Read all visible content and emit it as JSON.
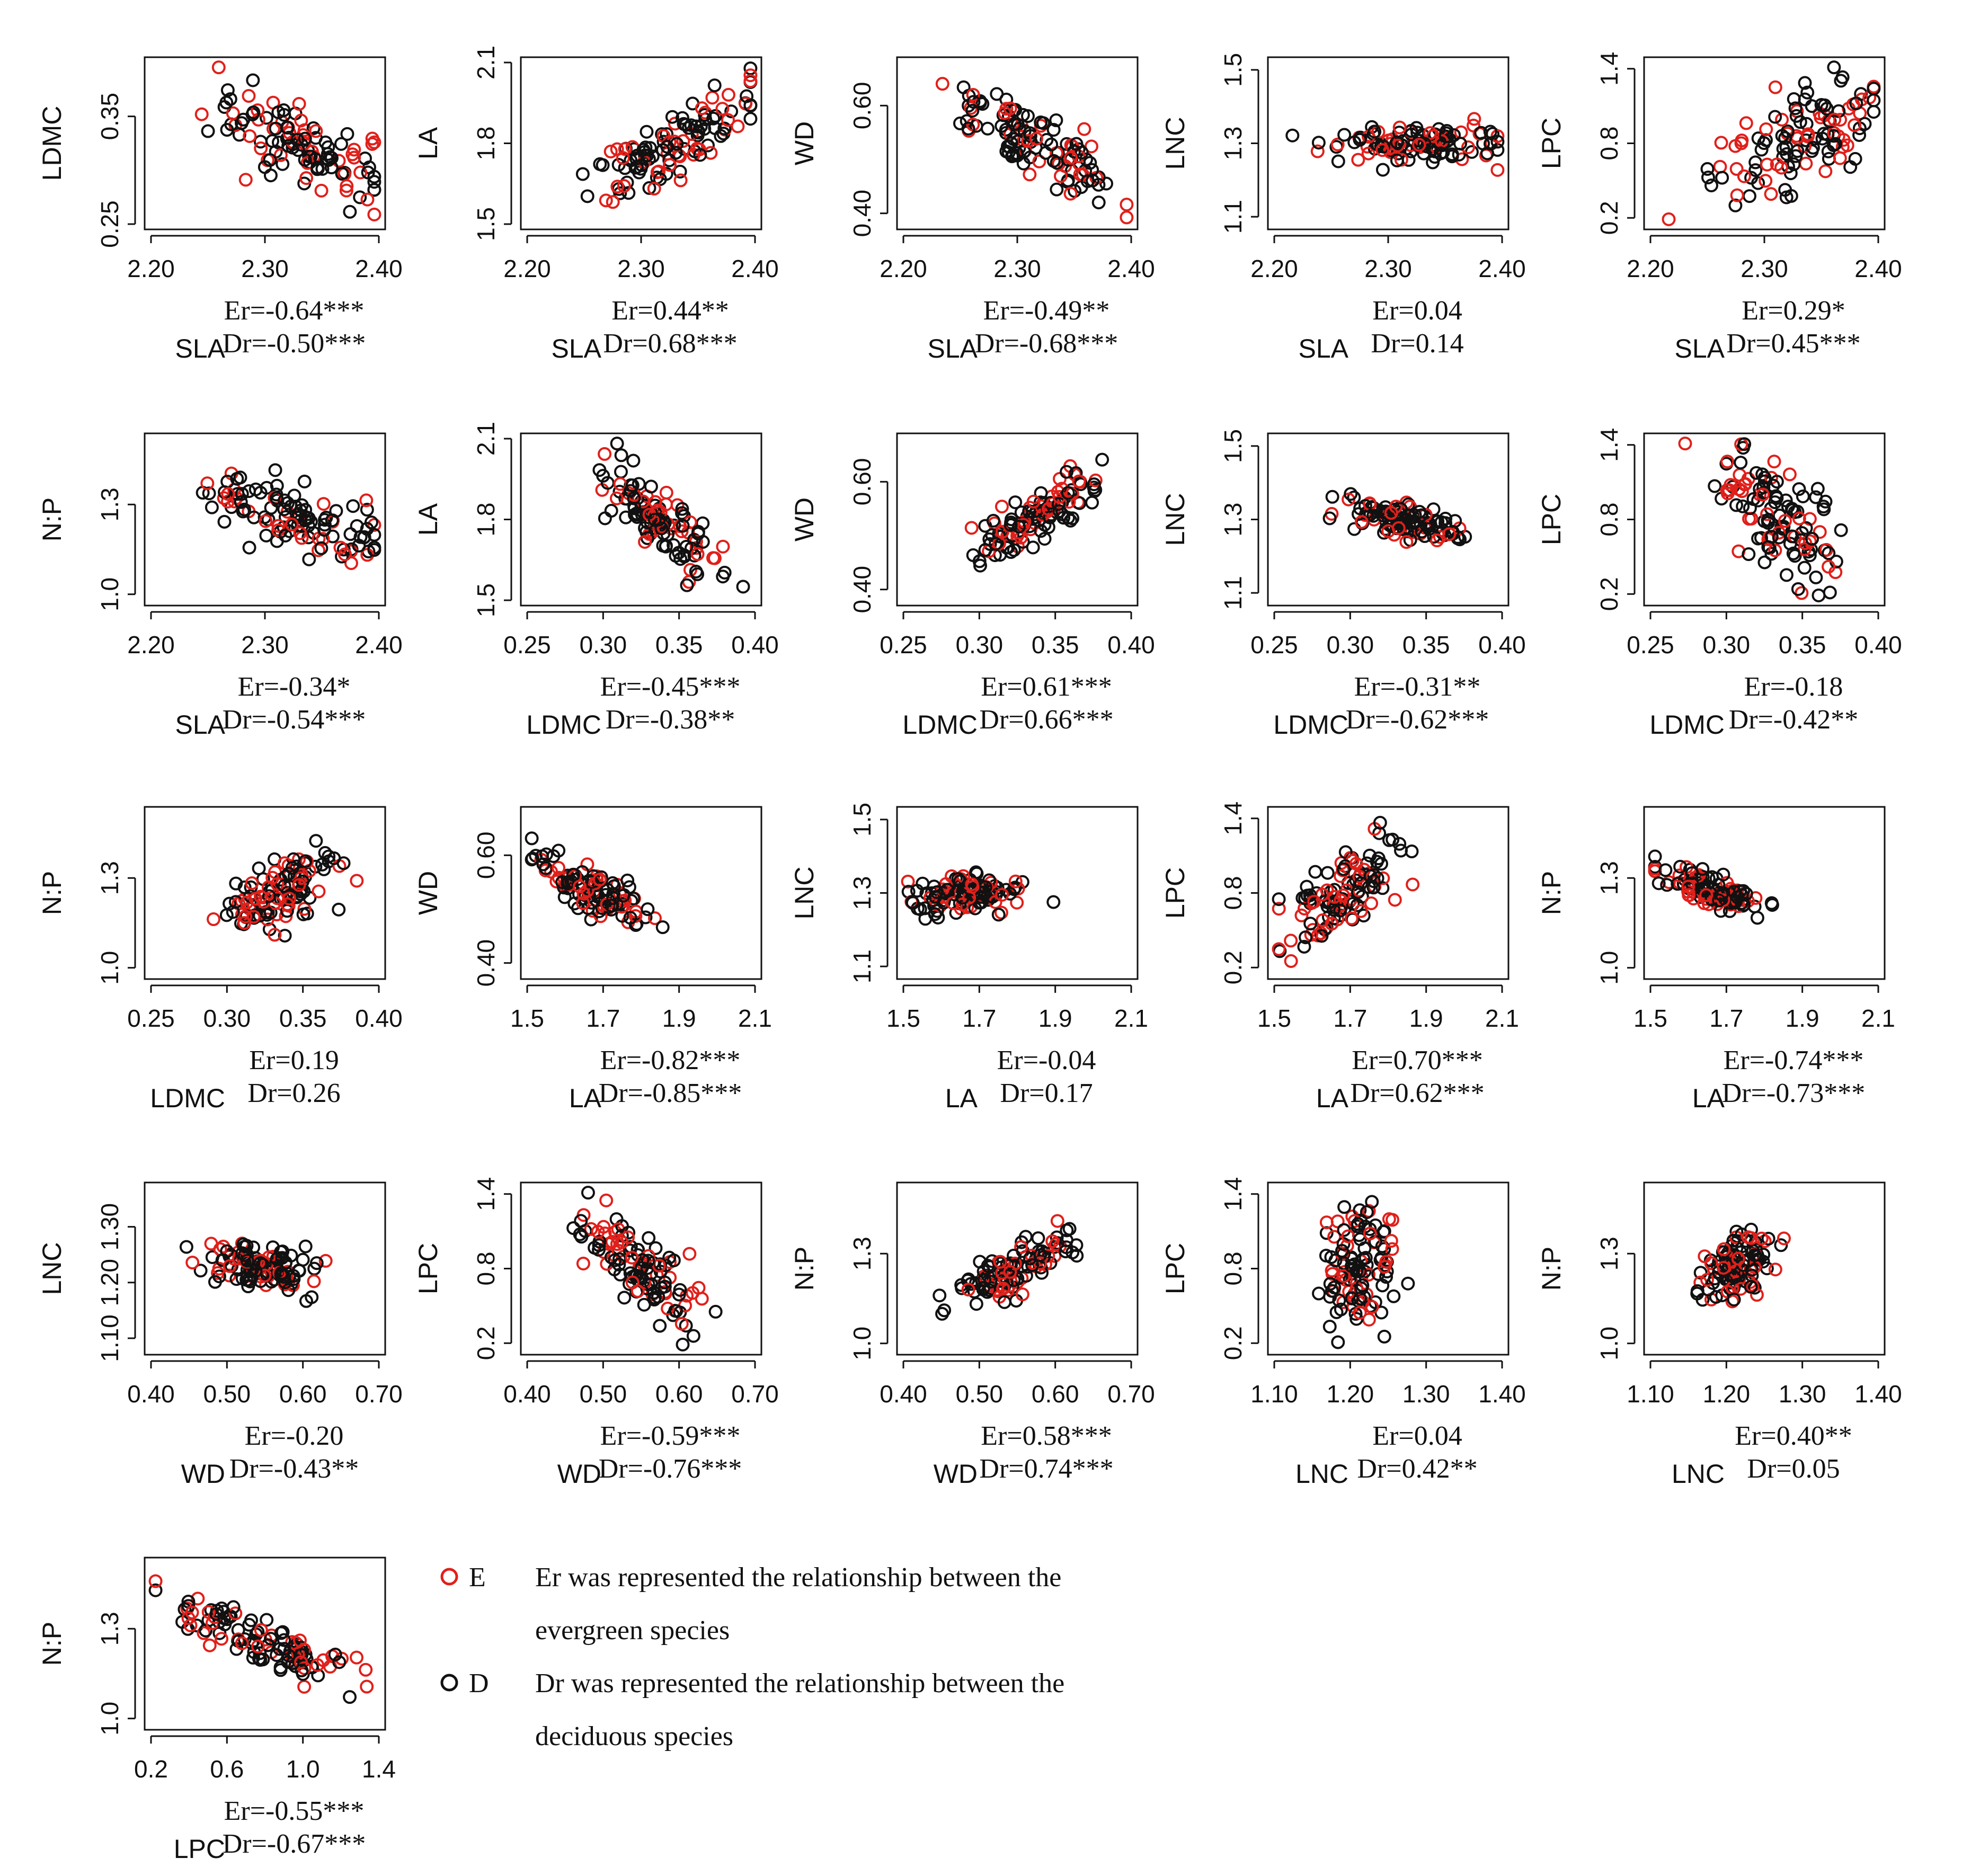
{
  "legend": {
    "evergreen_key": "E",
    "deciduous_key": "D",
    "evergreen_color": "#e0201b",
    "deciduous_color": "#111111",
    "notes": [
      "Er  was represented the relationship between the",
      "evergreen species",
      "Dr was represented the relationship between the",
      "deciduous species"
    ]
  },
  "axes": {
    "SLA": {
      "min": 2.2,
      "max": 2.4,
      "ticks": [
        "2.20",
        "2.30",
        "2.40"
      ]
    },
    "LDMC": {
      "min": 0.25,
      "max": 0.4,
      "ticks": [
        "0.25",
        "0.30",
        "0.35",
        "0.40"
      ]
    },
    "LA": {
      "min": 1.5,
      "max": 2.1,
      "ticks": [
        "1.5",
        "1.7",
        "1.9",
        "2.1"
      ]
    },
    "WD": {
      "min": 0.4,
      "max": 0.7,
      "ticks": [
        "0.40",
        "0.50",
        "0.60",
        "0.70"
      ]
    },
    "LNC": {
      "min": 1.1,
      "max": 1.4,
      "ticks": [
        "1.10",
        "1.20",
        "1.30",
        "1.40"
      ]
    },
    "LPC": {
      "min": 0.2,
      "max": 1.4,
      "ticks": [
        "0.2",
        "0.6",
        "1.0",
        "1.4"
      ]
    }
  },
  "chart_data": [
    {
      "type": "scatter",
      "xlabel": "SLA",
      "ylabel": "LDMC",
      "ylim": [
        0.25,
        0.4
      ],
      "yticks": [
        "0.25",
        "0.35"
      ],
      "er": "Er=-0.64***",
      "dr": "Dr=-0.50***",
      "x_center": 2.33,
      "x_spread": 0.04,
      "slope": -0.4,
      "y_noise": 0.02
    },
    {
      "type": "scatter",
      "xlabel": "SLA",
      "ylabel": "LA",
      "ylim": [
        1.5,
        2.1
      ],
      "yticks": [
        "1.5",
        "1.8",
        "2.1"
      ],
      "er": "Er=0.44**",
      "dr": "Dr=0.68***",
      "x_center": 2.33,
      "x_spread": 0.04,
      "slope": 2.2,
      "y_noise": 0.06
    },
    {
      "type": "scatter",
      "xlabel": "SLA",
      "ylabel": "WD",
      "ylim": [
        0.38,
        0.68
      ],
      "yticks": [
        "0.40",
        "0.60"
      ],
      "er": "Er=-0.49**",
      "dr": "Dr=-0.68***",
      "x_center": 2.32,
      "x_spread": 0.04,
      "slope": -1.0,
      "y_noise": 0.03
    },
    {
      "type": "scatter",
      "xlabel": "SLA",
      "ylabel": "LNC",
      "ylim": [
        1.08,
        1.52
      ],
      "yticks": [
        "1.1",
        "1.3",
        "1.5"
      ],
      "er": "Er=0.04",
      "dr": "Dr=0.14",
      "x_center": 2.33,
      "x_spread": 0.04,
      "slope": 0.05,
      "y_noise": 0.025
    },
    {
      "type": "scatter",
      "xlabel": "SLA",
      "ylabel": "LPC",
      "ylim": [
        0.15,
        1.45
      ],
      "yticks": [
        "0.2",
        "0.8",
        "1.4"
      ],
      "er": "Er=0.29*",
      "dr": "Dr=0.45***",
      "x_center": 2.33,
      "x_spread": 0.04,
      "slope": 4.0,
      "y_noise": 0.22
    },
    {
      "type": "scatter",
      "xlabel": "SLA",
      "ylabel": "N:P",
      "ylim": [
        0.98,
        1.52
      ],
      "yticks": [
        "1.0",
        "1.3"
      ],
      "er": "Er=-0.34*",
      "dr": "Dr=-0.54***",
      "x_center": 2.33,
      "x_spread": 0.04,
      "slope": -1.2,
      "y_noise": 0.05
    },
    {
      "type": "scatter",
      "xlabel": "LDMC",
      "ylabel": "LA",
      "ylim": [
        1.5,
        2.1
      ],
      "yticks": [
        "1.5",
        "1.8",
        "2.1"
      ],
      "er": "Er=-0.45***",
      "dr": "Dr=-0.38**",
      "x_center": 0.335,
      "x_spread": 0.02,
      "slope": -4.0,
      "y_noise": 0.07
    },
    {
      "type": "scatter",
      "xlabel": "LDMC",
      "ylabel": "WD",
      "ylim": [
        0.38,
        0.68
      ],
      "yticks": [
        "0.40",
        "0.60"
      ],
      "er": "Er=0.61***",
      "dr": "Dr=0.66***",
      "x_center": 0.335,
      "x_spread": 0.02,
      "slope": 1.6,
      "y_noise": 0.025
    },
    {
      "type": "scatter",
      "xlabel": "LDMC",
      "ylabel": "LNC",
      "ylim": [
        1.08,
        1.52
      ],
      "yticks": [
        "1.1",
        "1.3",
        "1.5"
      ],
      "er": "Er=-0.31**",
      "dr": "Dr=-0.62***",
      "x_center": 0.335,
      "x_spread": 0.02,
      "slope": -0.8,
      "y_noise": 0.025
    },
    {
      "type": "scatter",
      "xlabel": "LDMC",
      "ylabel": "LPC",
      "ylim": [
        0.15,
        1.45
      ],
      "yticks": [
        "0.2",
        "0.8",
        "1.4"
      ],
      "er": "Er=-0.18",
      "dr": "Dr=-0.42**",
      "x_center": 0.335,
      "x_spread": 0.02,
      "slope": -8.0,
      "y_noise": 0.22
    },
    {
      "type": "scatter",
      "xlabel": "LDMC",
      "ylabel": "N:P",
      "ylim": [
        0.98,
        1.52
      ],
      "yticks": [
        "1.0",
        "1.3"
      ],
      "er": "Er=0.19",
      "dr": "Dr=0.26",
      "x_center": 0.335,
      "x_spread": 0.02,
      "slope": 2.0,
      "y_noise": 0.06
    },
    {
      "type": "scatter",
      "xlabel": "LA",
      "ylabel": "WD",
      "ylim": [
        0.38,
        0.68
      ],
      "yticks": [
        "0.40",
        "0.60"
      ],
      "er": "Er=-0.82***",
      "dr": "Dr=-0.85***",
      "x_center": 1.68,
      "x_spread": 0.08,
      "slope": -0.35,
      "y_noise": 0.02
    },
    {
      "type": "scatter",
      "xlabel": "LA",
      "ylabel": "LNC",
      "ylim": [
        1.08,
        1.52
      ],
      "yticks": [
        "1.1",
        "1.3",
        "1.5"
      ],
      "er": "Er=-0.04",
      "dr": "Dr=0.17",
      "x_center": 1.68,
      "x_spread": 0.08,
      "slope": 0.05,
      "y_noise": 0.025
    },
    {
      "type": "scatter",
      "xlabel": "LA",
      "ylabel": "LPC",
      "ylim": [
        0.15,
        1.45
      ],
      "yticks": [
        "0.2",
        "0.8",
        "1.4"
      ],
      "er": "Er=0.70***",
      "dr": "Dr=0.62***",
      "x_center": 1.68,
      "x_spread": 0.08,
      "slope": 1.8,
      "y_noise": 0.15
    },
    {
      "type": "scatter",
      "xlabel": "LA",
      "ylabel": "N:P",
      "ylim": [
        0.98,
        1.52
      ],
      "yticks": [
        "1.0",
        "1.3"
      ],
      "er": "Er=-0.74***",
      "dr": "Dr=-0.73***",
      "x_center": 1.68,
      "x_spread": 0.08,
      "slope": -0.45,
      "y_noise": 0.03
    },
    {
      "type": "scatter",
      "xlabel": "WD",
      "ylabel": "LNC",
      "ylim": [
        1.08,
        1.37
      ],
      "yticks": [
        "1.10",
        "1.20",
        "1.30"
      ],
      "er": "Er=-0.20",
      "dr": "Dr=-0.43**",
      "x_center": 0.55,
      "x_spread": 0.04,
      "slope": -0.2,
      "y_noise": 0.02
    },
    {
      "type": "scatter",
      "xlabel": "WD",
      "ylabel": "LPC",
      "ylim": [
        0.15,
        1.45
      ],
      "yticks": [
        "0.2",
        "0.8",
        "1.4"
      ],
      "er": "Er=-0.59***",
      "dr": "Dr=-0.76***",
      "x_center": 0.55,
      "x_spread": 0.04,
      "slope": -4.5,
      "y_noise": 0.15
    },
    {
      "type": "scatter",
      "xlabel": "WD",
      "ylabel": "N:P",
      "ylim": [
        0.98,
        1.52
      ],
      "yticks": [
        "1.0",
        "1.3"
      ],
      "er": "Er=0.58***",
      "dr": "Dr=0.74***",
      "x_center": 0.55,
      "x_spread": 0.04,
      "slope": 1.2,
      "y_noise": 0.04
    },
    {
      "type": "scatter",
      "xlabel": "LNC",
      "ylabel": "LPC",
      "ylim": [
        0.15,
        1.45
      ],
      "yticks": [
        "0.2",
        "0.8",
        "1.4"
      ],
      "er": "Er=0.04",
      "dr": "Dr=0.42**",
      "x_center": 1.21,
      "x_spread": 0.025,
      "slope": 2.0,
      "y_noise": 0.25
    },
    {
      "type": "scatter",
      "xlabel": "LNC",
      "ylabel": "N:P",
      "ylim": [
        0.98,
        1.52
      ],
      "yticks": [
        "1.0",
        "1.3"
      ],
      "er": "Er=0.40**",
      "dr": "Dr=0.05",
      "x_center": 1.21,
      "x_spread": 0.025,
      "slope": 1.0,
      "y_noise": 0.05
    },
    {
      "type": "scatter",
      "xlabel": "LPC",
      "ylabel": "N:P",
      "ylim": [
        0.98,
        1.52
      ],
      "yticks": [
        "1.0",
        "1.3"
      ],
      "er": "Er=-0.55***",
      "dr": "Dr=-0.67***",
      "x_center": 0.8,
      "x_spread": 0.25,
      "slope": -0.25,
      "y_noise": 0.04
    }
  ]
}
